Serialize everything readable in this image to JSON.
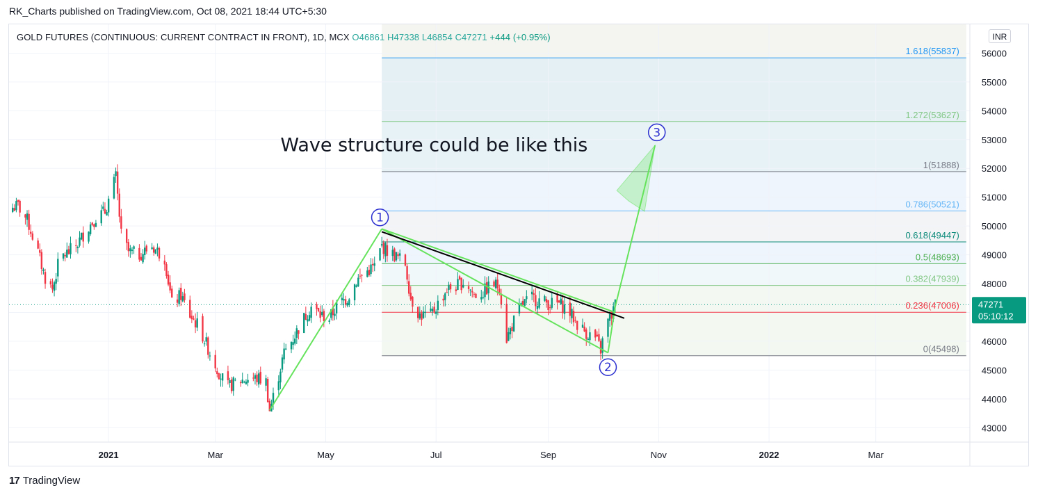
{
  "publisher_line": "RK_Charts published on TradingView.com, Oct 08, 2021 18:44 UTC+5:30",
  "legend": {
    "symbol": "GOLD FUTURES (CONTINUOUS: CURRENT CONTRACT IN FRONT), 1D, MCX",
    "open": "O46861",
    "high": "H47338",
    "low": "L46854",
    "close": "C47271",
    "change": "+444 (+0.95%)"
  },
  "currency": "INR",
  "footer_brand": "TradingView",
  "footer_brand_mark": "17",
  "colors": {
    "up": "#089981",
    "down": "#f23645",
    "wave": "#66e35d",
    "trendline": "#000000",
    "last_price_bg": "#089981"
  },
  "chart_data": {
    "type": "candlestick",
    "y_axis": {
      "min": 42500,
      "max": 57000,
      "ticks": [
        43000,
        44000,
        45000,
        46000,
        47000,
        48000,
        49000,
        50000,
        51000,
        52000,
        53000,
        54000,
        55000,
        56000
      ],
      "tick_labels": [
        "43000",
        "44000",
        "45000",
        "46000",
        "47000",
        "48000",
        "49000",
        "50000",
        "51000",
        "52000",
        "53000",
        "54000",
        "55000",
        "56000"
      ]
    },
    "x_axis": {
      "start": "2020-11-07",
      "end": "2022-04-22",
      "ticks": [
        {
          "date": "2021-01-01",
          "label": "2021",
          "bold": true
        },
        {
          "date": "2021-03-01",
          "label": "Mar",
          "bold": false
        },
        {
          "date": "2021-05-01",
          "label": "May",
          "bold": false
        },
        {
          "date": "2021-07-01",
          "label": "Jul",
          "bold": false
        },
        {
          "date": "2021-09-01",
          "label": "Sep",
          "bold": false
        },
        {
          "date": "2021-11-01",
          "label": "Nov",
          "bold": false
        },
        {
          "date": "2022-01-01",
          "label": "2022",
          "bold": true
        },
        {
          "date": "2022-03-01",
          "label": "Mar",
          "bold": false
        }
      ]
    },
    "price_path": [
      [
        "2020-11-07",
        50600
      ],
      [
        "2020-11-12",
        50700
      ],
      [
        "2020-11-17",
        50200
      ],
      [
        "2020-11-22",
        49300
      ],
      [
        "2020-11-27",
        48200
      ],
      [
        "2020-12-01",
        47800
      ],
      [
        "2020-12-05",
        48900
      ],
      [
        "2020-12-10",
        49100
      ],
      [
        "2020-12-15",
        49400
      ],
      [
        "2020-12-20",
        49900
      ],
      [
        "2020-12-25",
        50300
      ],
      [
        "2020-12-30",
        50500
      ],
      [
        "2021-01-05",
        51700
      ],
      [
        "2021-01-08",
        49700
      ],
      [
        "2021-01-12",
        49100
      ],
      [
        "2021-01-18",
        49000
      ],
      [
        "2021-01-25",
        49300
      ],
      [
        "2021-02-01",
        48900
      ],
      [
        "2021-02-05",
        47300
      ],
      [
        "2021-02-10",
        47600
      ],
      [
        "2021-02-15",
        46900
      ],
      [
        "2021-02-20",
        46500
      ],
      [
        "2021-02-26",
        45600
      ],
      [
        "2021-03-04",
        44800
      ],
      [
        "2021-03-08",
        44400
      ],
      [
        "2021-03-13",
        44600
      ],
      [
        "2021-03-19",
        44700
      ],
      [
        "2021-03-25",
        44700
      ],
      [
        "2021-03-29",
        44600
      ],
      [
        "2021-03-31",
        43600
      ],
      [
        "2021-04-03",
        44300
      ],
      [
        "2021-04-08",
        45600
      ],
      [
        "2021-04-13",
        46100
      ],
      [
        "2021-04-18",
        46700
      ],
      [
        "2021-04-23",
        47200
      ],
      [
        "2021-04-28",
        46900
      ],
      [
        "2021-05-03",
        46800
      ],
      [
        "2021-05-08",
        47300
      ],
      [
        "2021-05-13",
        47500
      ],
      [
        "2021-05-18",
        48100
      ],
      [
        "2021-05-23",
        48400
      ],
      [
        "2021-05-28",
        48600
      ],
      [
        "2021-06-01",
        49300
      ],
      [
        "2021-06-05",
        49100
      ],
      [
        "2021-06-10",
        48900
      ],
      [
        "2021-06-14",
        48700
      ],
      [
        "2021-06-17",
        47500
      ],
      [
        "2021-06-22",
        46900
      ],
      [
        "2021-06-28",
        46900
      ],
      [
        "2021-07-02",
        47300
      ],
      [
        "2021-07-07",
        47800
      ],
      [
        "2021-07-12",
        47900
      ],
      [
        "2021-07-17",
        48100
      ],
      [
        "2021-07-22",
        47600
      ],
      [
        "2021-07-27",
        47700
      ],
      [
        "2021-08-01",
        48000
      ],
      [
        "2021-08-05",
        47900
      ],
      [
        "2021-08-09",
        46100
      ],
      [
        "2021-08-13",
        46700
      ],
      [
        "2021-08-18",
        47300
      ],
      [
        "2021-08-23",
        47500
      ],
      [
        "2021-08-28",
        47400
      ],
      [
        "2021-09-02",
        47300
      ],
      [
        "2021-09-07",
        47300
      ],
      [
        "2021-09-12",
        47100
      ],
      [
        "2021-09-17",
        46600
      ],
      [
        "2021-09-22",
        46300
      ],
      [
        "2021-09-27",
        46100
      ],
      [
        "2021-09-30",
        45700
      ],
      [
        "2021-10-03",
        46600
      ],
      [
        "2021-10-06",
        46900
      ],
      [
        "2021-10-08",
        47271
      ]
    ],
    "fibonacci": {
      "anchor_start": "2021-06-01",
      "anchor_end": "2022-04-20",
      "levels": [
        {
          "ratio": "1.618",
          "price": 55837,
          "label": "1.618(55837)",
          "color": "#2196f3",
          "fill": "#e4f0f4"
        },
        {
          "ratio": "1.272",
          "price": 53627,
          "label": "1.272(53627)",
          "color": "#81c784",
          "fill": "#e6f2f6"
        },
        {
          "ratio": "1",
          "price": 51888,
          "label": "1(51888)",
          "color": "#787b86",
          "fill": "#eef5fd"
        },
        {
          "ratio": "0.786",
          "price": 50521,
          "label": "0.786(50521)",
          "color": "#64b5f6",
          "fill": "#f3f4f5"
        },
        {
          "ratio": "0.618",
          "price": 49447,
          "label": "0.618(49447)",
          "color": "#0b8a7a",
          "fill": "#eef5fd"
        },
        {
          "ratio": "0.5",
          "price": 48693,
          "label": "0.5(48693)",
          "color": "#4caf50",
          "fill": "#f1f8fa"
        },
        {
          "ratio": "0.382",
          "price": 47939,
          "label": "0.382(47939)",
          "color": "#81c784",
          "fill": "#f3f9f2"
        },
        {
          "ratio": "0.236",
          "price": 47006,
          "label": "0.236(47006)",
          "color": "#f23645",
          "fill": "#f3f9f1"
        },
        {
          "ratio": "0",
          "price": 45498,
          "label": "0(45498)",
          "color": "#787b86",
          "fill": "#fdeded"
        }
      ]
    },
    "wave_path": [
      [
        "2021-03-31",
        43600
      ],
      [
        "2021-06-01",
        49900
      ],
      [
        "2021-10-04",
        45600
      ],
      [
        "2021-10-08",
        47200
      ],
      [
        "2021-10-30",
        52800
      ]
    ],
    "wave_channel": [
      [
        [
          "2021-06-01",
          49900
        ],
        [
          "2021-10-08",
          47000
        ]
      ]
    ],
    "trendline": [
      [
        "2021-06-01",
        49800
      ],
      [
        "2021-10-13",
        46800
      ]
    ],
    "wave_labels": [
      {
        "text": "1",
        "date": "2021-05-31",
        "price": 50300
      },
      {
        "text": "2",
        "date": "2021-10-04",
        "price": 45100
      },
      {
        "text": "3",
        "date": "2021-10-31",
        "price": 53250
      }
    ],
    "annotation": {
      "text": "Wave structure could be like this",
      "date": "2021-04-06",
      "price": 52600
    },
    "last_price": {
      "value": 47271,
      "label": "47271",
      "countdown": "05:10:12"
    }
  }
}
